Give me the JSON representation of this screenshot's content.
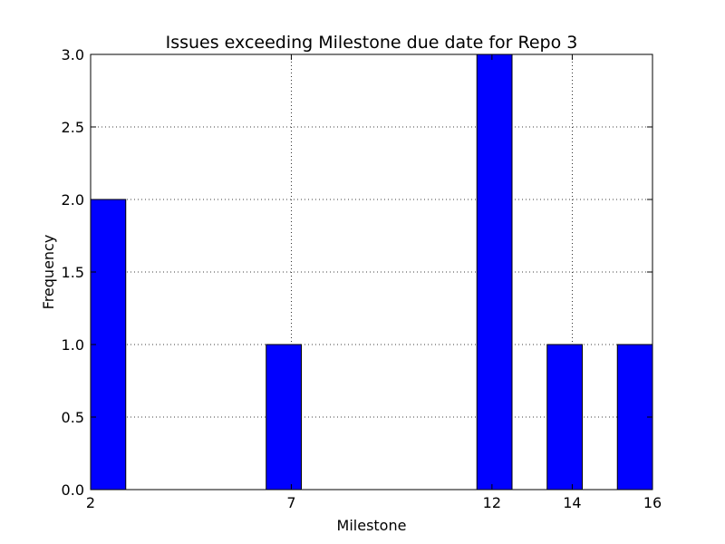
{
  "chart_data": {
    "type": "bar",
    "title": "Issues exceeding Milestone due date for Repo 3",
    "xlabel": "Milestone",
    "ylabel": "Frequency",
    "xlim": [
      2,
      16
    ],
    "ylim": [
      0,
      3.0
    ],
    "x_ticks": [
      {
        "value": 2,
        "label": "2"
      },
      {
        "value": 7,
        "label": "7"
      },
      {
        "value": 12,
        "label": "12"
      },
      {
        "value": 14,
        "label": "14"
      },
      {
        "value": 16,
        "label": "16"
      }
    ],
    "y_ticks": [
      {
        "value": 0.0,
        "label": "0.0"
      },
      {
        "value": 0.5,
        "label": "0.5"
      },
      {
        "value": 1.0,
        "label": "1.0"
      },
      {
        "value": 1.5,
        "label": "1.5"
      },
      {
        "value": 2.0,
        "label": "2.0"
      },
      {
        "value": 2.5,
        "label": "2.5"
      },
      {
        "value": 3.0,
        "label": "3.0"
      }
    ],
    "bars": [
      {
        "x_start": 2.0,
        "x_end": 2.875,
        "value": 2
      },
      {
        "x_start": 6.375,
        "x_end": 7.25,
        "value": 1
      },
      {
        "x_start": 11.625,
        "x_end": 12.5,
        "value": 3
      },
      {
        "x_start": 13.375,
        "x_end": 14.25,
        "value": 1
      },
      {
        "x_start": 15.125,
        "x_end": 16.0,
        "value": 1
      }
    ],
    "grid": true,
    "bar_color": "#0000ff",
    "edge_color": "#000000"
  }
}
